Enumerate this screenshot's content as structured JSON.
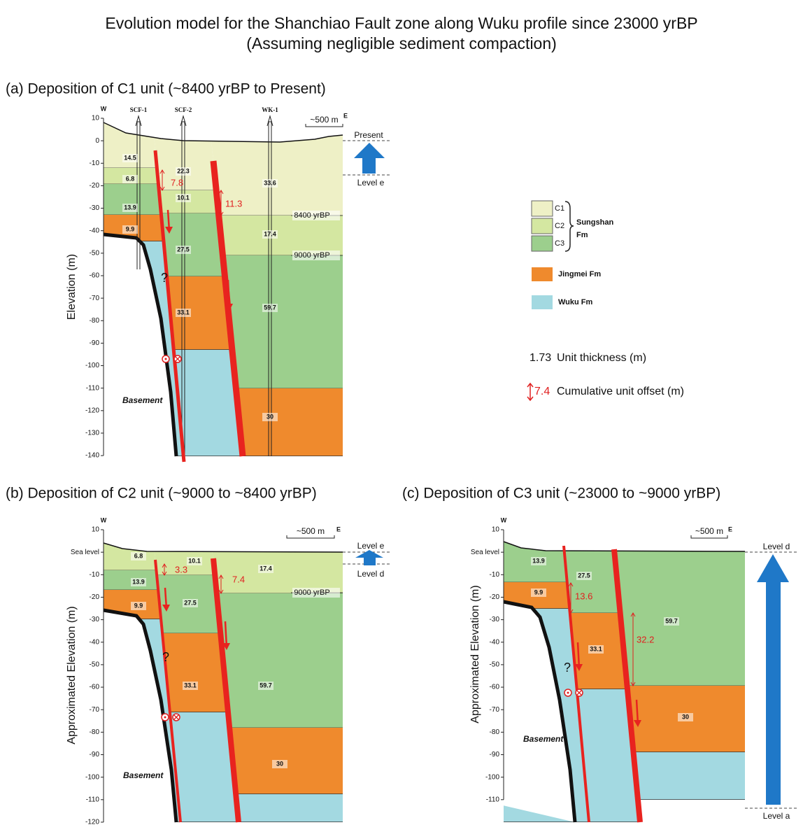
{
  "title": {
    "line1": "Evolution model for the Shanchiao Fault zone along Wuku profile since 23000 yrBP",
    "line2": "(Assuming negligible sediment compaction)"
  },
  "panels": [
    {
      "label": "(a) Deposition of C1 unit (~8400 yrBP to Present)",
      "west": "W",
      "east": "E",
      "scale_bar": "~500 m",
      "y_axis_title": "Elevation (m)",
      "y_ticks": [
        "10",
        "0",
        "-10",
        "-20",
        "-30",
        "-40",
        "-50",
        "-60",
        "-70",
        "-80",
        "-90",
        "-100",
        "-110",
        "-120",
        "-130",
        "-140"
      ],
      "wells": [
        "SCF-1",
        "SCF-2",
        "WK-1"
      ],
      "thickness": [
        "14.5",
        "6.8",
        "13.9",
        "9.9",
        "22.3",
        "10.1",
        "27.5",
        "33.1",
        "33.6",
        "17.4",
        "59.7",
        "30"
      ],
      "offsets": [
        "7.8",
        "11.3"
      ],
      "time_marks": [
        "8400 yrBP",
        "9000 yrBP"
      ],
      "levels": [
        "Present",
        "Level e"
      ],
      "basement": "Basement",
      "unknown": "?"
    },
    {
      "label": "(b) Deposition of C2 unit (~9000 to ~8400 yrBP)",
      "west": "W",
      "east": "E",
      "scale_bar": "~500 m",
      "y_axis_title": "Approximated Elevation (m)",
      "y_ticks": [
        "10",
        "Sea level",
        "-10",
        "-20",
        "-30",
        "-40",
        "-50",
        "-60",
        "-70",
        "-80",
        "-90",
        "-100",
        "-110",
        "-120"
      ],
      "wells": [],
      "thickness": [
        "6.8",
        "13.9",
        "9.9",
        "10.1",
        "27.5",
        "33.1",
        "17.4",
        "59.7",
        "30"
      ],
      "offsets": [
        "3.3",
        "7.4"
      ],
      "time_marks": [
        "9000 yrBP"
      ],
      "levels": [
        "Level e",
        "Level d"
      ],
      "basement": "Basement",
      "unknown": "?"
    },
    {
      "label": "(c) Deposition of C3 unit (~23000 to ~9000 yrBP)",
      "west": "W",
      "east": "E",
      "scale_bar": "~500 m",
      "y_axis_title": "Approximated Elevation (m)",
      "y_ticks": [
        "10",
        "Sea level",
        "-10",
        "-20",
        "-30",
        "-40",
        "-50",
        "-60",
        "-70",
        "-80",
        "-90",
        "-100",
        "-110"
      ],
      "wells": [],
      "thickness": [
        "13.9",
        "9.9",
        "27.5",
        "33.1",
        "59.7",
        "30"
      ],
      "offsets": [
        "13.6",
        "32.2"
      ],
      "time_marks": [],
      "levels": [
        "Level d",
        "Level a"
      ],
      "basement": "Basement",
      "unknown": "?"
    }
  ],
  "legend": {
    "units": [
      "C1",
      "C2",
      "C3"
    ],
    "group": [
      "Sungshan",
      "Fm"
    ],
    "jingmei": "Jingmei Fm",
    "wuku": "Wuku Fm",
    "thickness_example": "1.73",
    "thickness_text": "Unit thickness (m)",
    "offset_example": "7.4",
    "offset_text": "Cumulative unit offset (m)"
  }
}
